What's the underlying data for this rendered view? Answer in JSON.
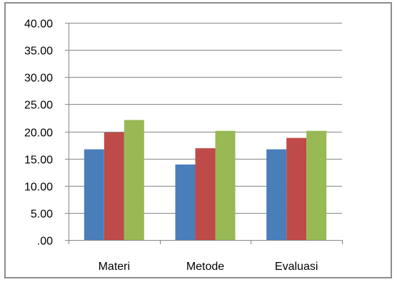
{
  "chart_data": {
    "type": "bar",
    "categories": [
      "Materi",
      "Metode",
      "Evaluasi"
    ],
    "series": [
      {
        "values": [
          16.7,
          13.9,
          16.7
        ],
        "color": "#4A7EBB"
      },
      {
        "values": [
          19.8,
          16.9,
          18.8
        ],
        "color": "#BE4B48"
      },
      {
        "values": [
          22.1,
          20.1,
          20.1
        ],
        "color": "#98B954"
      }
    ],
    "y_ticks": [
      "40.00",
      "35.00",
      "30.00",
      "25.00",
      "20.00",
      "15.00",
      "10.00",
      "5.00",
      ".00"
    ],
    "ylim": [
      0,
      40
    ],
    "y_step": 5,
    "grid": true,
    "legend": "none",
    "gridline_color": "#868686",
    "axis_color": "#868686"
  }
}
